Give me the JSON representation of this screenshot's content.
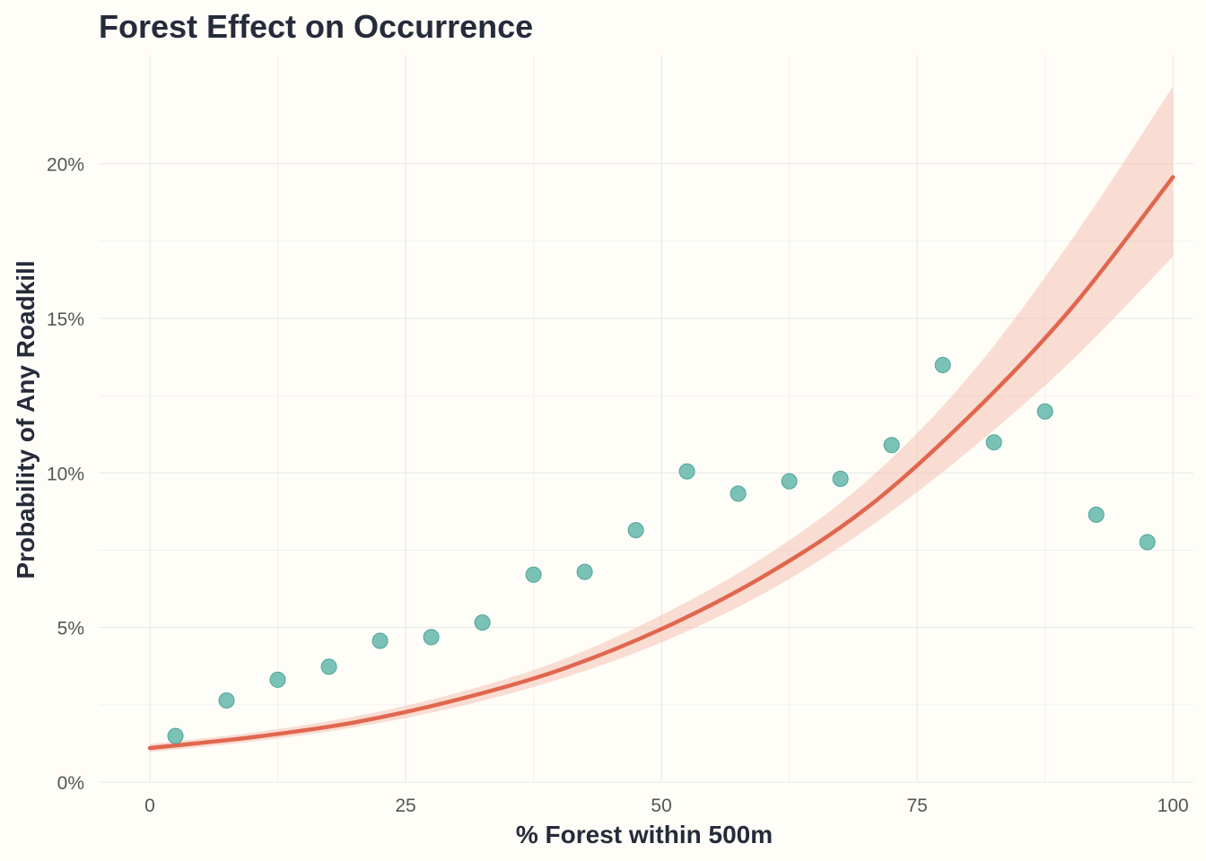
{
  "chart_data": {
    "type": "scatter",
    "title": "Forest Effect on Occurrence",
    "xlabel": "% Forest within 500m",
    "ylabel": "Probability of Any Roadkill",
    "xlim": [
      -5,
      102
    ],
    "ylim": [
      0,
      0.235
    ],
    "x_ticks": [
      0,
      25,
      50,
      75,
      100
    ],
    "x_tick_labels": [
      "0",
      "25",
      "50",
      "75",
      "100"
    ],
    "y_ticks": [
      0,
      0.05,
      0.1,
      0.15,
      0.2
    ],
    "y_tick_labels": [
      "0%",
      "5%",
      "10%",
      "15%",
      "20%"
    ],
    "grid": true,
    "legend": "none",
    "colors": {
      "points": "#6DBBAE",
      "points_edge": "#4FA596",
      "fit_line": "#E0674E",
      "ribbon": "#F4C1B3",
      "background": "#FEFDF8"
    },
    "series": [
      {
        "type": "scatter",
        "x": [
          2.5,
          7.5,
          12.5,
          17.5,
          22.5,
          27.5,
          32.5,
          37.5,
          42.5,
          47.5,
          52.5,
          57.5,
          62.5,
          67.5,
          72.5,
          77.5,
          82.5,
          87.5,
          92.5,
          97.5
        ],
        "y": [
          0.0149,
          0.0264,
          0.0331,
          0.0373,
          0.0457,
          0.0469,
          0.0516,
          0.0671,
          0.068,
          0.0815,
          0.1005,
          0.0933,
          0.0973,
          0.0981,
          0.109,
          0.1349,
          0.1099,
          0.1199,
          0.0865,
          0.0776
        ]
      },
      {
        "type": "line",
        "x": [
          0,
          10,
          20,
          30,
          40,
          50,
          60,
          70,
          80,
          90,
          100
        ],
        "y": [
          0.011,
          0.0145,
          0.0193,
          0.0266,
          0.0362,
          0.0495,
          0.0666,
          0.0885,
          0.118,
          0.153,
          0.1957
        ],
        "ci_lower": [
          0.0097,
          0.0131,
          0.0177,
          0.0243,
          0.0333,
          0.0452,
          0.061,
          0.0817,
          0.107,
          0.136,
          0.17
        ],
        "ci_upper": [
          0.0123,
          0.016,
          0.0212,
          0.0288,
          0.0392,
          0.054,
          0.0727,
          0.0972,
          0.131,
          0.175,
          0.225
        ]
      }
    ]
  }
}
